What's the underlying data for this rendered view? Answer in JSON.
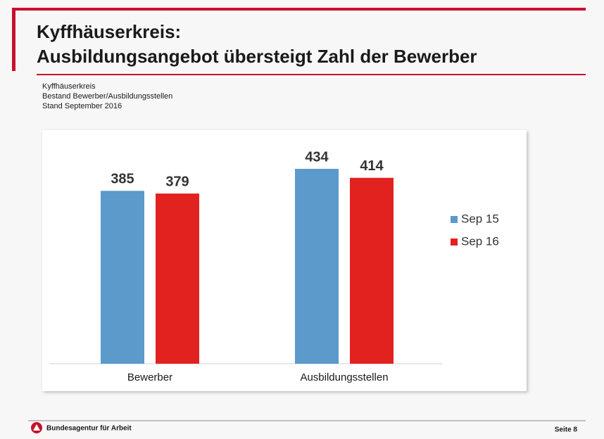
{
  "header": {
    "title": [
      "Kyffhäuserkreis:",
      "Ausbildungsangebot übersteigt Zahl der Bewerber"
    ],
    "note": [
      "Kyffhäuserkreis",
      "Bestand Bewerber/Ausbildungsstellen",
      "Stand September 2016"
    ]
  },
  "chart_data": {
    "type": "bar",
    "categories": [
      "Bewerber",
      "Ausbildungsstellen"
    ],
    "series": [
      {
        "name": "Sep 15",
        "color": "#5b9acb",
        "values": [
          385,
          434
        ]
      },
      {
        "name": "Sep 16",
        "color": "#e1221f",
        "values": [
          379,
          414
        ]
      }
    ],
    "legend": "right"
  },
  "footer": {
    "organization": "Bundesagentur für Arbeit",
    "page": "Seite 8"
  }
}
